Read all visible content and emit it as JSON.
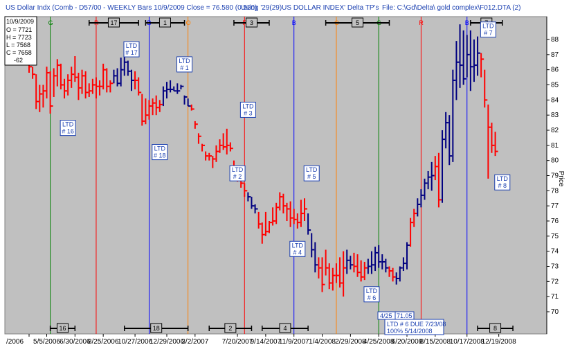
{
  "header": {
    "title": "US Dollar Indx (Comb - D57/00  - WEEKLY Bars  10/9/2009 Close = 76.580 (0.530)",
    "using": "Using '29(29)US DOLLAR INDEX' Delta TP's",
    "file": "File: C:\\Gd\\Delta\\ gold complex\\F012.DTA (2)"
  },
  "ohlc_box": {
    "date": "10/9/2009",
    "open": "O = 7721",
    "high": "H = 7723",
    "low": "L = 7568",
    "close": "C = 7658",
    "change": "-62"
  },
  "colors": {
    "red": "#ff0000",
    "blue": "#000080",
    "bg": "#c0c0c0"
  },
  "chart_data": {
    "type": "ohlc",
    "ylabel": "Price",
    "ylim": [
      69,
      89
    ],
    "xlim": [
      0,
      146
    ],
    "yticks": [
      70,
      71,
      72,
      73,
      74,
      75,
      76,
      77,
      78,
      79,
      80,
      81,
      82,
      83,
      84,
      85,
      86,
      87,
      88
    ],
    "xticks": [
      {
        "i": 0,
        "label": "/2006"
      },
      {
        "i": 5,
        "label": "5/5/2006"
      },
      {
        "i": 13,
        "label": "6/30/2006"
      },
      {
        "i": 21,
        "label": "8/25/2006"
      },
      {
        "i": 30,
        "label": "10/27/2006"
      },
      {
        "i": 39,
        "label": "12/29/2006"
      },
      {
        "i": 47,
        "label": "3/2/2007"
      },
      {
        "i": 59,
        "label": "7/20/2007"
      },
      {
        "i": 67,
        "label": "9/14/2007"
      },
      {
        "i": 75,
        "label": "11/9/2007"
      },
      {
        "i": 83,
        "label": "1/4/2008"
      },
      {
        "i": 91,
        "label": "2/29/2008"
      },
      {
        "i": 99,
        "label": "4/25/2008"
      },
      {
        "i": 107,
        "label": "6/20/2008"
      },
      {
        "i": 115,
        "label": "8/15/2008"
      },
      {
        "i": 124,
        "label": "10/17/2008"
      },
      {
        "i": 133,
        "label": "12/19/2008"
      }
    ],
    "verticals": [
      {
        "i": 6,
        "letter": "G",
        "color": "#008000"
      },
      {
        "i": 19,
        "letter": "R",
        "color": "#ff0000"
      },
      {
        "i": 34,
        "letter": "B",
        "color": "#0000ff"
      },
      {
        "i": 45,
        "letter": "O",
        "color": "#ff8000"
      },
      {
        "i": 61,
        "letter": "R",
        "color": "#ff0000"
      },
      {
        "i": 75,
        "letter": "B",
        "color": "#0000ff"
      },
      {
        "i": 87,
        "letter": "O",
        "color": "#ff8000"
      },
      {
        "i": 99,
        "letter": "G",
        "color": "#008000"
      },
      {
        "i": 111,
        "letter": "R",
        "color": "#ff0000"
      },
      {
        "i": 124,
        "letter": "B",
        "color": "#0000ff"
      }
    ],
    "top_ranges": [
      {
        "start": 17,
        "end": 31,
        "label": "17"
      },
      {
        "start": 33,
        "end": 44,
        "label": "1"
      },
      {
        "start": 58,
        "end": 68,
        "label": "3"
      },
      {
        "start": 84,
        "end": 102,
        "label": "5"
      },
      {
        "start": 125,
        "end": 134,
        "label": "7"
      }
    ],
    "bottom_ranges": [
      {
        "start": 6,
        "end": 13,
        "label": "16"
      },
      {
        "start": 27,
        "end": 45,
        "label": "18"
      },
      {
        "start": 51,
        "end": 63,
        "label": "2"
      },
      {
        "start": 66,
        "end": 79,
        "label": "4"
      },
      {
        "start": 106,
        "end": 117,
        "label": "6"
      },
      {
        "start": 127,
        "end": 137,
        "label": "8"
      }
    ],
    "ltd_labels": [
      {
        "i": 11,
        "price": 82.2,
        "line1": "LTD",
        "line2": "# 16"
      },
      {
        "i": 29,
        "price": 87.4,
        "line1": "LTD",
        "line2": "# 17"
      },
      {
        "i": 37,
        "price": 80.6,
        "line1": "LTD",
        "line2": "# 18"
      },
      {
        "i": 44,
        "price": 86.4,
        "line1": "LTD",
        "line2": "# 1"
      },
      {
        "i": 59,
        "price": 79.2,
        "line1": "LTD",
        "line2": "# 2"
      },
      {
        "i": 62,
        "price": 83.4,
        "line1": "LTD",
        "line2": "# 3"
      },
      {
        "i": 76,
        "price": 74.2,
        "line1": "LTD",
        "line2": "# 4"
      },
      {
        "i": 80,
        "price": 79.2,
        "line1": "LTD",
        "line2": "# 5"
      },
      {
        "i": 97,
        "price": 71.2,
        "line1": "LTD",
        "line2": "# 6"
      },
      {
        "i": 130,
        "price": 88.7,
        "line1": "LTD",
        "line2": "# 7"
      },
      {
        "i": 134,
        "price": 78.6,
        "line1": "LTD",
        "line2": "# 8"
      }
    ],
    "annotations": {
      "a1": "4/25",
      "a2": "71.05",
      "a3": "LTD # 6 DUE 7/23/08",
      "a4": "100% 5/14/2008"
    },
    "series": [
      {
        "values": [
          [
            86.6,
            85.8,
            86.2
          ],
          [
            86.2,
            85.4,
            85.7
          ],
          [
            85.7,
            83.4,
            83.9
          ],
          [
            85.0,
            83.2,
            84.4
          ],
          [
            85.0,
            83.5,
            84.6
          ],
          [
            86.2,
            84.1,
            85.8
          ],
          [
            85.9,
            83.1,
            83.6
          ],
          [
            86.1,
            84.2,
            85.6
          ],
          [
            86.7,
            84.9,
            86.3
          ],
          [
            86.4,
            84.7,
            85.0
          ],
          [
            85.4,
            84.1,
            84.6
          ],
          [
            85.7,
            84.3,
            85.3
          ],
          [
            86.2,
            84.8,
            85.7
          ],
          [
            86.9,
            85.2,
            85.5
          ],
          [
            85.8,
            84.0,
            84.8
          ],
          [
            86.0,
            84.4,
            85.6
          ],
          [
            85.9,
            84.1,
            84.5
          ],
          [
            85.1,
            84.2,
            84.6
          ],
          [
            85.4,
            84.4,
            85.0
          ],
          [
            85.5,
            84.1,
            84.9
          ],
          [
            85.3,
            84.3,
            84.9
          ],
          [
            86.4,
            84.7,
            86.0
          ],
          [
            86.1,
            84.5,
            84.9
          ],
          [
            85.3,
            84.5,
            85.1
          ],
          [
            86.0,
            85.1,
            85.6
          ],
          [
            86.1,
            84.9,
            85.1
          ],
          [
            86.8,
            84.9,
            86.0
          ],
          [
            87.0,
            85.6,
            86.5
          ],
          [
            86.6,
            85.6,
            85.9
          ],
          [
            86.0,
            84.6,
            85.3
          ],
          [
            85.9,
            84.7,
            85.3
          ],
          [
            85.5,
            84.3,
            84.5
          ],
          [
            84.4,
            82.3,
            82.6
          ],
          [
            84.1,
            82.4,
            83.0
          ],
          [
            84.0,
            82.7,
            83.6
          ],
          [
            84.1,
            83.0,
            83.8
          ],
          [
            84.3,
            83.0,
            83.5
          ],
          [
            84.0,
            83.2,
            83.7
          ],
          [
            84.9,
            83.6,
            84.6
          ],
          [
            85.2,
            84.1,
            84.7
          ],
          [
            85.3,
            84.5,
            84.7
          ],
          [
            84.9,
            84.6,
            84.6
          ],
          [
            85.1,
            84.4,
            84.6
          ],
          [
            85.0,
            84.7,
            84.9
          ],
          [
            84.3,
            83.7,
            84.2
          ],
          [
            84.1,
            83.6,
            83.6
          ],
          [
            83.7,
            83.3,
            83.4
          ],
          [
            82.6,
            82.1,
            82.4
          ],
          [
            81.8,
            81.1,
            81.6
          ],
          [
            81.1,
            80.6,
            81.0
          ],
          [
            80.6,
            80.0,
            80.3
          ],
          [
            80.5,
            80.0,
            80.3
          ],
          [
            80.3,
            79.5,
            80.1
          ],
          [
            81.0,
            79.9,
            80.6
          ],
          [
            81.4,
            80.5,
            81.0
          ],
          [
            81.8,
            80.7,
            80.9
          ],
          [
            82.1,
            80.4,
            81.0
          ],
          [
            81.2,
            80.6,
            80.8
          ],
          [
            80.0,
            79.3,
            79.4
          ],
          [
            79.5,
            78.6,
            79.1
          ],
          [
            78.8,
            78.2,
            78.5
          ],
          [
            78.5,
            77.6,
            78.0
          ],
          [
            77.9,
            77.3,
            77.6
          ],
          [
            77.6,
            76.8,
            77.0
          ],
          [
            77.1,
            76.5,
            76.8
          ],
          [
            76.6,
            75.5,
            75.8
          ],
          [
            75.9,
            74.5,
            75.1
          ],
          [
            76.6,
            75.0,
            75.3
          ],
          [
            76.0,
            75.2,
            75.9
          ],
          [
            76.9,
            75.7,
            76.0
          ],
          [
            77.2,
            75.8,
            76.9
          ],
          [
            77.9,
            76.7,
            77.6
          ],
          [
            77.8,
            76.5,
            77.0
          ],
          [
            77.2,
            76.0,
            76.8
          ],
          [
            77.3,
            75.6,
            76.2
          ],
          [
            76.8,
            75.8,
            76.1
          ],
          [
            76.5,
            75.5,
            75.9
          ],
          [
            77.4,
            75.6,
            76.5
          ],
          [
            77.5,
            76.0,
            76.8
          ],
          [
            76.5,
            75.1,
            75.4
          ],
          [
            75.2,
            73.6,
            74.1
          ],
          [
            74.6,
            72.6,
            73.1
          ],
          [
            73.6,
            72.2,
            72.9
          ],
          [
            73.6,
            71.3,
            71.8
          ],
          [
            74.1,
            72.4,
            72.9
          ],
          [
            73.2,
            71.5,
            71.9
          ],
          [
            72.9,
            71.4,
            72.4
          ],
          [
            73.2,
            71.9,
            72.4
          ],
          [
            73.6,
            71.6,
            71.9
          ],
          [
            74.0,
            71.0,
            72.9
          ],
          [
            74.1,
            72.5,
            73.4
          ],
          [
            73.7,
            72.8,
            73.1
          ],
          [
            73.9,
            72.6,
            73.0
          ],
          [
            73.8,
            72.3,
            72.6
          ],
          [
            73.4,
            72.0,
            72.3
          ],
          [
            73.3,
            72.1,
            72.9
          ],
          [
            73.5,
            72.5,
            73.0
          ],
          [
            74.0,
            72.5,
            73.1
          ],
          [
            74.3,
            72.7,
            73.9
          ],
          [
            74.4,
            72.9,
            73.3
          ],
          [
            73.8,
            72.8,
            73.3
          ],
          [
            73.5,
            72.6,
            72.9
          ],
          [
            73.0,
            72.3,
            72.7
          ],
          [
            72.9,
            72.0,
            72.3
          ],
          [
            72.6,
            71.8,
            72.2
          ],
          [
            73.0,
            72.0,
            72.9
          ],
          [
            73.6,
            72.7,
            73.2
          ],
          [
            74.6,
            72.8,
            74.4
          ],
          [
            76.2,
            74.3,
            75.9
          ],
          [
            76.8,
            75.6,
            76.5
          ],
          [
            77.5,
            76.3,
            77.1
          ],
          [
            78.1,
            76.9,
            77.7
          ],
          [
            78.8,
            77.4,
            78.5
          ],
          [
            79.3,
            78.1,
            78.9
          ],
          [
            79.9,
            78.0,
            79.0
          ],
          [
            80.3,
            78.7,
            79.6
          ],
          [
            80.5,
            76.9,
            77.4
          ],
          [
            82.0,
            77.2,
            81.4
          ],
          [
            83.2,
            80.8,
            82.5
          ],
          [
            83.0,
            79.7,
            80.3
          ],
          [
            86.0,
            79.9,
            85.3
          ],
          [
            87.9,
            84.0,
            86.5
          ],
          [
            89.0,
            84.8,
            86.3
          ],
          [
            88.6,
            85.0,
            85.4
          ],
          [
            88.3,
            85.5,
            87.0
          ],
          [
            88.6,
            84.6,
            86.2
          ],
          [
            88.0,
            85.2,
            86.3
          ],
          [
            88.2,
            85.6,
            87.1
          ],
          [
            87.1,
            85.5,
            86.7
          ],
          [
            86.0,
            83.5,
            84.0
          ],
          [
            83.7,
            78.8,
            82.2
          ],
          [
            82.5,
            80.5,
            81.0
          ],
          [
            81.9,
            80.3,
            80.6
          ]
        ]
      }
    ]
  }
}
